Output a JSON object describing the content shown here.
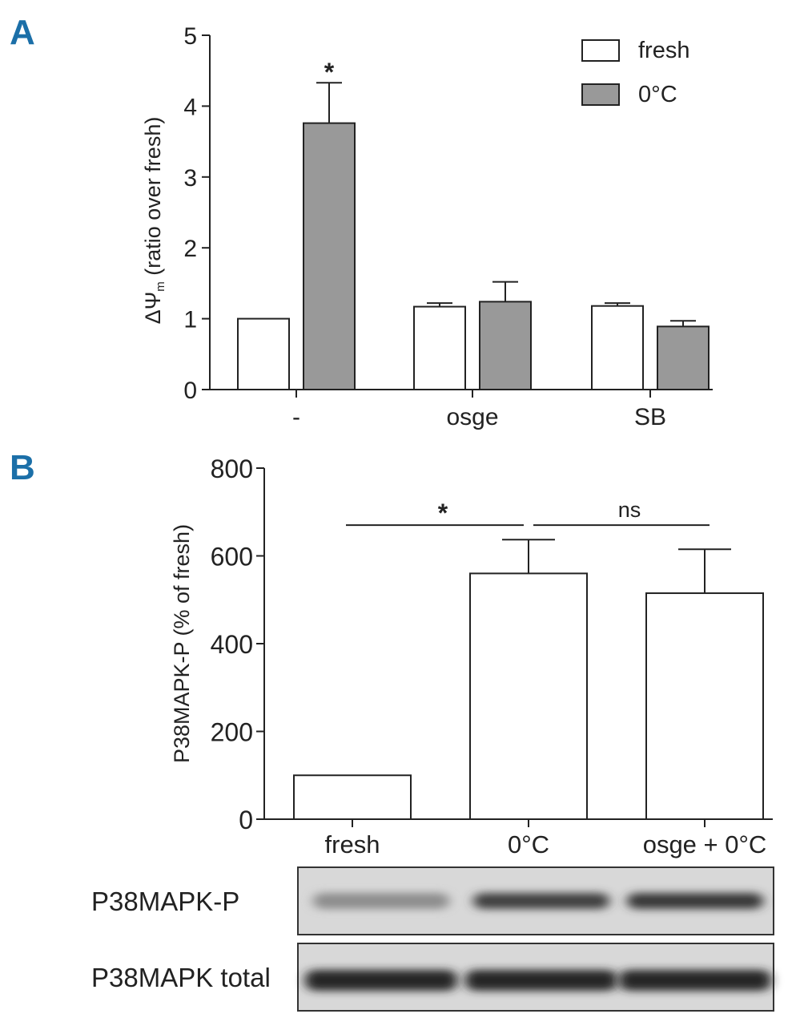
{
  "panel_a_letter": "A",
  "panel_b_letter": "B",
  "chart_data": [
    {
      "type": "bar",
      "panel": "A",
      "ylabel_main": "ΔΨ",
      "ylabel_sub": "m",
      "ylabel_rest": " (ratio over fresh)",
      "xlabel": "",
      "ylim": [
        0,
        5
      ],
      "yticks": [
        "0",
        "1",
        "2",
        "3",
        "4",
        "5"
      ],
      "categories": [
        "-",
        "osge",
        "SB"
      ],
      "series": [
        {
          "name": "fresh",
          "color": "#ffffff",
          "values": [
            1.0,
            1.17,
            1.18
          ],
          "errors": [
            0,
            0.05,
            0.04
          ]
        },
        {
          "name": "0°C",
          "color": "#999999",
          "values": [
            3.76,
            1.24,
            0.89
          ],
          "errors": [
            0.57,
            0.28,
            0.08
          ]
        }
      ],
      "annotations": [
        {
          "text": "*",
          "category": 0,
          "series": 1
        }
      ],
      "legend": {
        "position": "top-right"
      },
      "grid": false
    },
    {
      "type": "bar",
      "panel": "B",
      "ylabel": "P38MAPK-P (% of fresh)",
      "xlabel": "",
      "ylim": [
        0,
        800
      ],
      "yticks": [
        "0",
        "200",
        "400",
        "600",
        "800"
      ],
      "categories": [
        "fresh",
        "0°C",
        "osge + 0°C"
      ],
      "values": [
        100,
        560,
        515
      ],
      "errors": [
        0,
        77,
        100
      ],
      "color": "#ffffff",
      "significance": [
        {
          "from": 0,
          "to": 1,
          "label": "*",
          "y": 670
        },
        {
          "from": 1,
          "to": 2,
          "label": "ns",
          "y": 670
        }
      ],
      "grid": false
    }
  ],
  "blot": {
    "rows": [
      {
        "label": "P38MAPK-P",
        "intensity": [
          0.35,
          0.8,
          0.85
        ]
      },
      {
        "label": "P38MAPK total",
        "intensity": [
          0.95,
          0.95,
          0.95
        ]
      }
    ]
  }
}
